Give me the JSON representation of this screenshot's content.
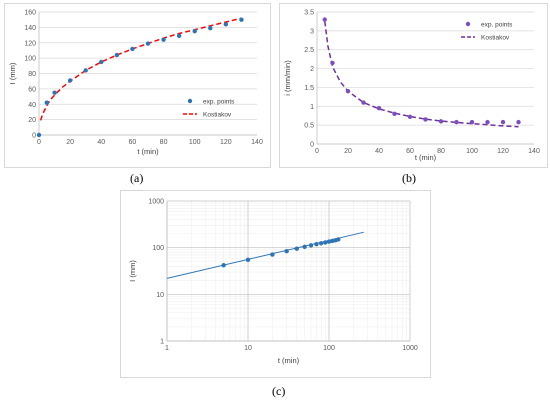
{
  "captions": {
    "a": "(a)",
    "b": "(b)",
    "c": "(c)"
  },
  "colors": {
    "points_a": "#2e75b6",
    "fit_a": "#ff0000",
    "points_b": "#7a4fbf",
    "fit_b": "#7030a0",
    "points_c": "#2e75b6",
    "line_c": "#2e75b6",
    "grid": "#d9d9d9"
  },
  "chart_data": [
    {
      "id": "a",
      "type": "scatter",
      "xlabel": "t (min)",
      "ylabel": "I (mm)",
      "xlim": [
        0,
        140
      ],
      "ylim": [
        0,
        160
      ],
      "xticks": [
        0,
        20,
        40,
        60,
        80,
        100,
        120,
        140
      ],
      "yticks": [
        0,
        20,
        40,
        60,
        80,
        100,
        120,
        140,
        160
      ],
      "legend_position": "bottom-right",
      "grid": "horizontal",
      "series": [
        {
          "name": "exp. points",
          "kind": "points",
          "x": [
            0,
            5,
            10,
            20,
            30,
            40,
            50,
            60,
            70,
            80,
            90,
            100,
            110,
            120,
            130
          ],
          "y": [
            0,
            42,
            55,
            71,
            84,
            95,
            104,
            112,
            119,
            124,
            129,
            135,
            139,
            144,
            150
          ]
        },
        {
          "name": "Kostiakov",
          "kind": "dashed-line",
          "x": [
            1,
            2,
            3,
            5,
            7,
            10,
            15,
            20,
            30,
            40,
            50,
            60,
            70,
            80,
            90,
            100,
            110,
            120,
            130
          ],
          "y": [
            19,
            25,
            30,
            38,
            45,
            52,
            62,
            70,
            84,
            95,
            104,
            112,
            119,
            126,
            132,
            137,
            142,
            147,
            152
          ]
        }
      ]
    },
    {
      "id": "b",
      "type": "scatter",
      "xlabel": "t (min)",
      "ylabel": "i (mm/min)",
      "xlim": [
        0,
        140
      ],
      "ylim": [
        0,
        3.5
      ],
      "xticks": [
        0,
        20,
        40,
        60,
        80,
        100,
        120,
        140
      ],
      "yticks": [
        0,
        0.5,
        1,
        1.5,
        2,
        2.5,
        3,
        3.5
      ],
      "legend_position": "top-right",
      "grid": "horizontal",
      "series": [
        {
          "name": "exp. points",
          "kind": "points",
          "x": [
            5,
            10,
            20,
            30,
            40,
            50,
            60,
            70,
            80,
            90,
            100,
            110,
            120,
            130
          ],
          "y": [
            3.3,
            2.15,
            1.4,
            1.1,
            0.95,
            0.8,
            0.72,
            0.65,
            0.6,
            0.58,
            0.58,
            0.58,
            0.58,
            0.58
          ]
        },
        {
          "name": "Kostiakov",
          "kind": "dashed-line",
          "x": [
            5,
            7,
            10,
            15,
            20,
            30,
            40,
            50,
            60,
            70,
            80,
            90,
            100,
            110,
            120,
            130
          ],
          "y": [
            3.25,
            2.6,
            2.05,
            1.65,
            1.4,
            1.1,
            0.93,
            0.82,
            0.73,
            0.66,
            0.61,
            0.57,
            0.54,
            0.51,
            0.48,
            0.46
          ]
        }
      ]
    },
    {
      "id": "c",
      "type": "scatter",
      "xscale": "log",
      "yscale": "log",
      "xlabel": "t (min)",
      "ylabel": "I (mm)",
      "xlim": [
        1,
        1000
      ],
      "ylim": [
        1,
        1000
      ],
      "xticks": [
        1,
        10,
        100,
        1000
      ],
      "yticks": [
        1,
        10,
        100,
        1000
      ],
      "grid": "major-and-minor",
      "series": [
        {
          "name": "",
          "kind": "points",
          "x": [
            5,
            10,
            20,
            30,
            40,
            50,
            60,
            70,
            80,
            90,
            100,
            110,
            120,
            130
          ],
          "y": [
            42,
            55,
            71,
            84,
            95,
            104,
            112,
            119,
            124,
            129,
            135,
            139,
            144,
            150
          ]
        },
        {
          "name": "",
          "kind": "line",
          "x": [
            1,
            270
          ],
          "y": [
            22,
            215
          ]
        }
      ]
    }
  ]
}
